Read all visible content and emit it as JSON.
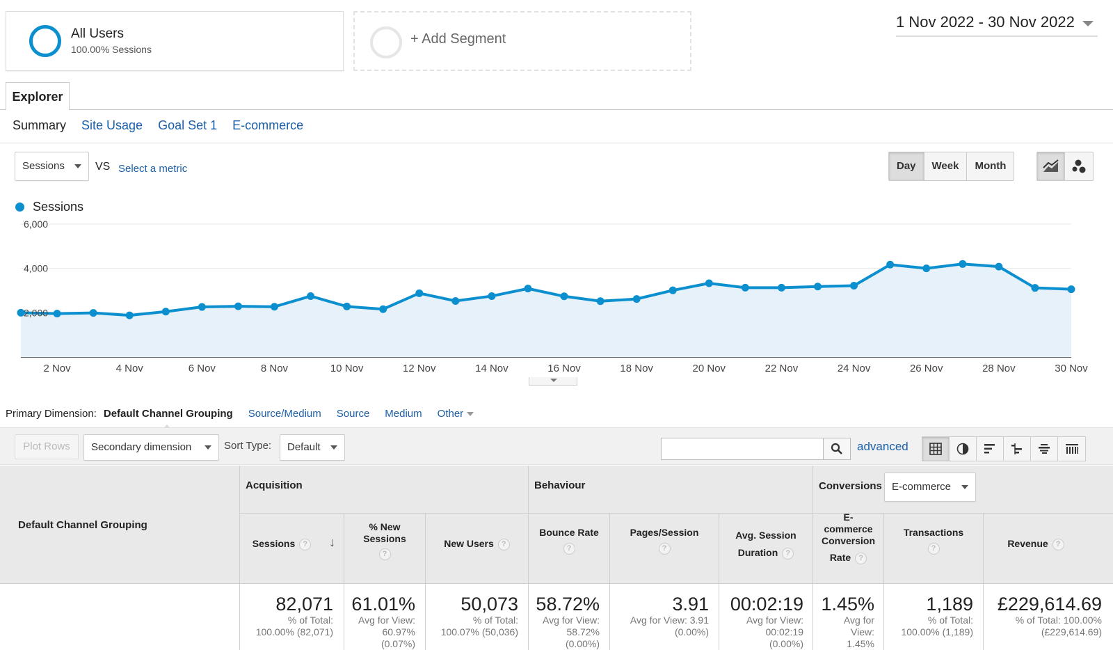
{
  "segments": {
    "active": {
      "title": "All Users",
      "subtitle": "100.00% Sessions"
    },
    "add_label": "+ Add Segment"
  },
  "date_range": "1 Nov 2022 - 30 Nov 2022",
  "explorer_tab": "Explorer",
  "subtabs": [
    "Summary",
    "Site Usage",
    "Goal Set 1",
    "E-commerce"
  ],
  "metric": {
    "primary": "Sessions",
    "vs": "VS",
    "select_metric": "Select a metric"
  },
  "period_buttons": [
    "Day",
    "Week",
    "Month"
  ],
  "legend_label": "Sessions",
  "colors": {
    "series": "#0b8fcf",
    "area": "#e6f1fa",
    "link": "#1a5fa8"
  },
  "chart_data": {
    "type": "line",
    "series": [
      {
        "name": "Sessions",
        "values": [
          2000,
          1960,
          1990,
          1880,
          2050,
          2260,
          2290,
          2270,
          2750,
          2280,
          2160,
          2880,
          2530,
          2750,
          3090,
          2740,
          2520,
          2620,
          3010,
          3330,
          3130,
          3130,
          3180,
          3220,
          4170,
          4000,
          4200,
          4080,
          3120,
          3060
        ]
      }
    ],
    "x_tick_labels": [
      "2 Nov",
      "4 Nov",
      "6 Nov",
      "8 Nov",
      "10 Nov",
      "12 Nov",
      "14 Nov",
      "16 Nov",
      "18 Nov",
      "20 Nov",
      "22 Nov",
      "24 Nov",
      "26 Nov",
      "28 Nov",
      "30 Nov"
    ],
    "y_tick_labels": [
      "6,000",
      "4,000",
      "2,000"
    ],
    "ylim": [
      0,
      6000
    ],
    "grid": true,
    "xlabel": "",
    "ylabel": ""
  },
  "primary_dimension": {
    "label": "Primary Dimension:",
    "current": "Default Channel Grouping",
    "options": [
      "Source/Medium",
      "Source",
      "Medium",
      "Other"
    ]
  },
  "toolbar": {
    "plot_rows": "Plot Rows",
    "secondary_dimension": "Secondary dimension",
    "sort_type_label": "Sort Type:",
    "sort_type_value": "Default",
    "search_value": "",
    "advanced": "advanced"
  },
  "table": {
    "dimension_header": "Default Channel Grouping",
    "groups": {
      "acquisition": "Acquisition",
      "behaviour": "Behaviour",
      "conversions": "Conversions",
      "conversions_select": "E-commerce"
    },
    "headers": {
      "sessions": "Sessions",
      "new_sessions_1": "% New",
      "new_sessions_2": "Sessions",
      "new_users": "New Users",
      "bounce_rate": "Bounce Rate",
      "pages_session": "Pages/Session",
      "avg_duration_1": "Avg. Session",
      "avg_duration_2": "Duration",
      "ecom_rate_1": "E-",
      "ecom_rate_2": "commerce",
      "ecom_rate_3": "Conversion",
      "ecom_rate_4": "Rate",
      "transactions": "Transactions",
      "revenue": "Revenue"
    },
    "totals": {
      "sessions": {
        "value": "82,071",
        "sub1": "% of Total:",
        "sub2": "100.00% (82,071)"
      },
      "new_sessions": {
        "value": "61.01%",
        "sub1": "Avg for View:",
        "sub2": "60.97%",
        "sub3": "(0.07%)"
      },
      "new_users": {
        "value": "50,073",
        "sub1": "% of Total:",
        "sub2": "100.07% (50,036)"
      },
      "bounce_rate": {
        "value": "58.72%",
        "sub1": "Avg for View:",
        "sub2": "58.72%",
        "sub3": "(0.00%)"
      },
      "pages_session": {
        "value": "3.91",
        "sub1": "Avg for View: 3.91",
        "sub2": "(0.00%)"
      },
      "avg_duration": {
        "value": "00:02:19",
        "sub1": "Avg for View:",
        "sub2": "00:02:19",
        "sub3": "(0.00%)"
      },
      "ecom_rate": {
        "value": "1.45%",
        "sub1": "Avg for",
        "sub2": "View:",
        "sub3": "1.45%"
      },
      "transactions": {
        "value": "1,189",
        "sub1": "% of Total:",
        "sub2": "100.00% (1,189)"
      },
      "revenue": {
        "value": "£229,614.69",
        "sub1": "% of Total: 100.00%",
        "sub2": "(£229,614.69)"
      }
    }
  }
}
